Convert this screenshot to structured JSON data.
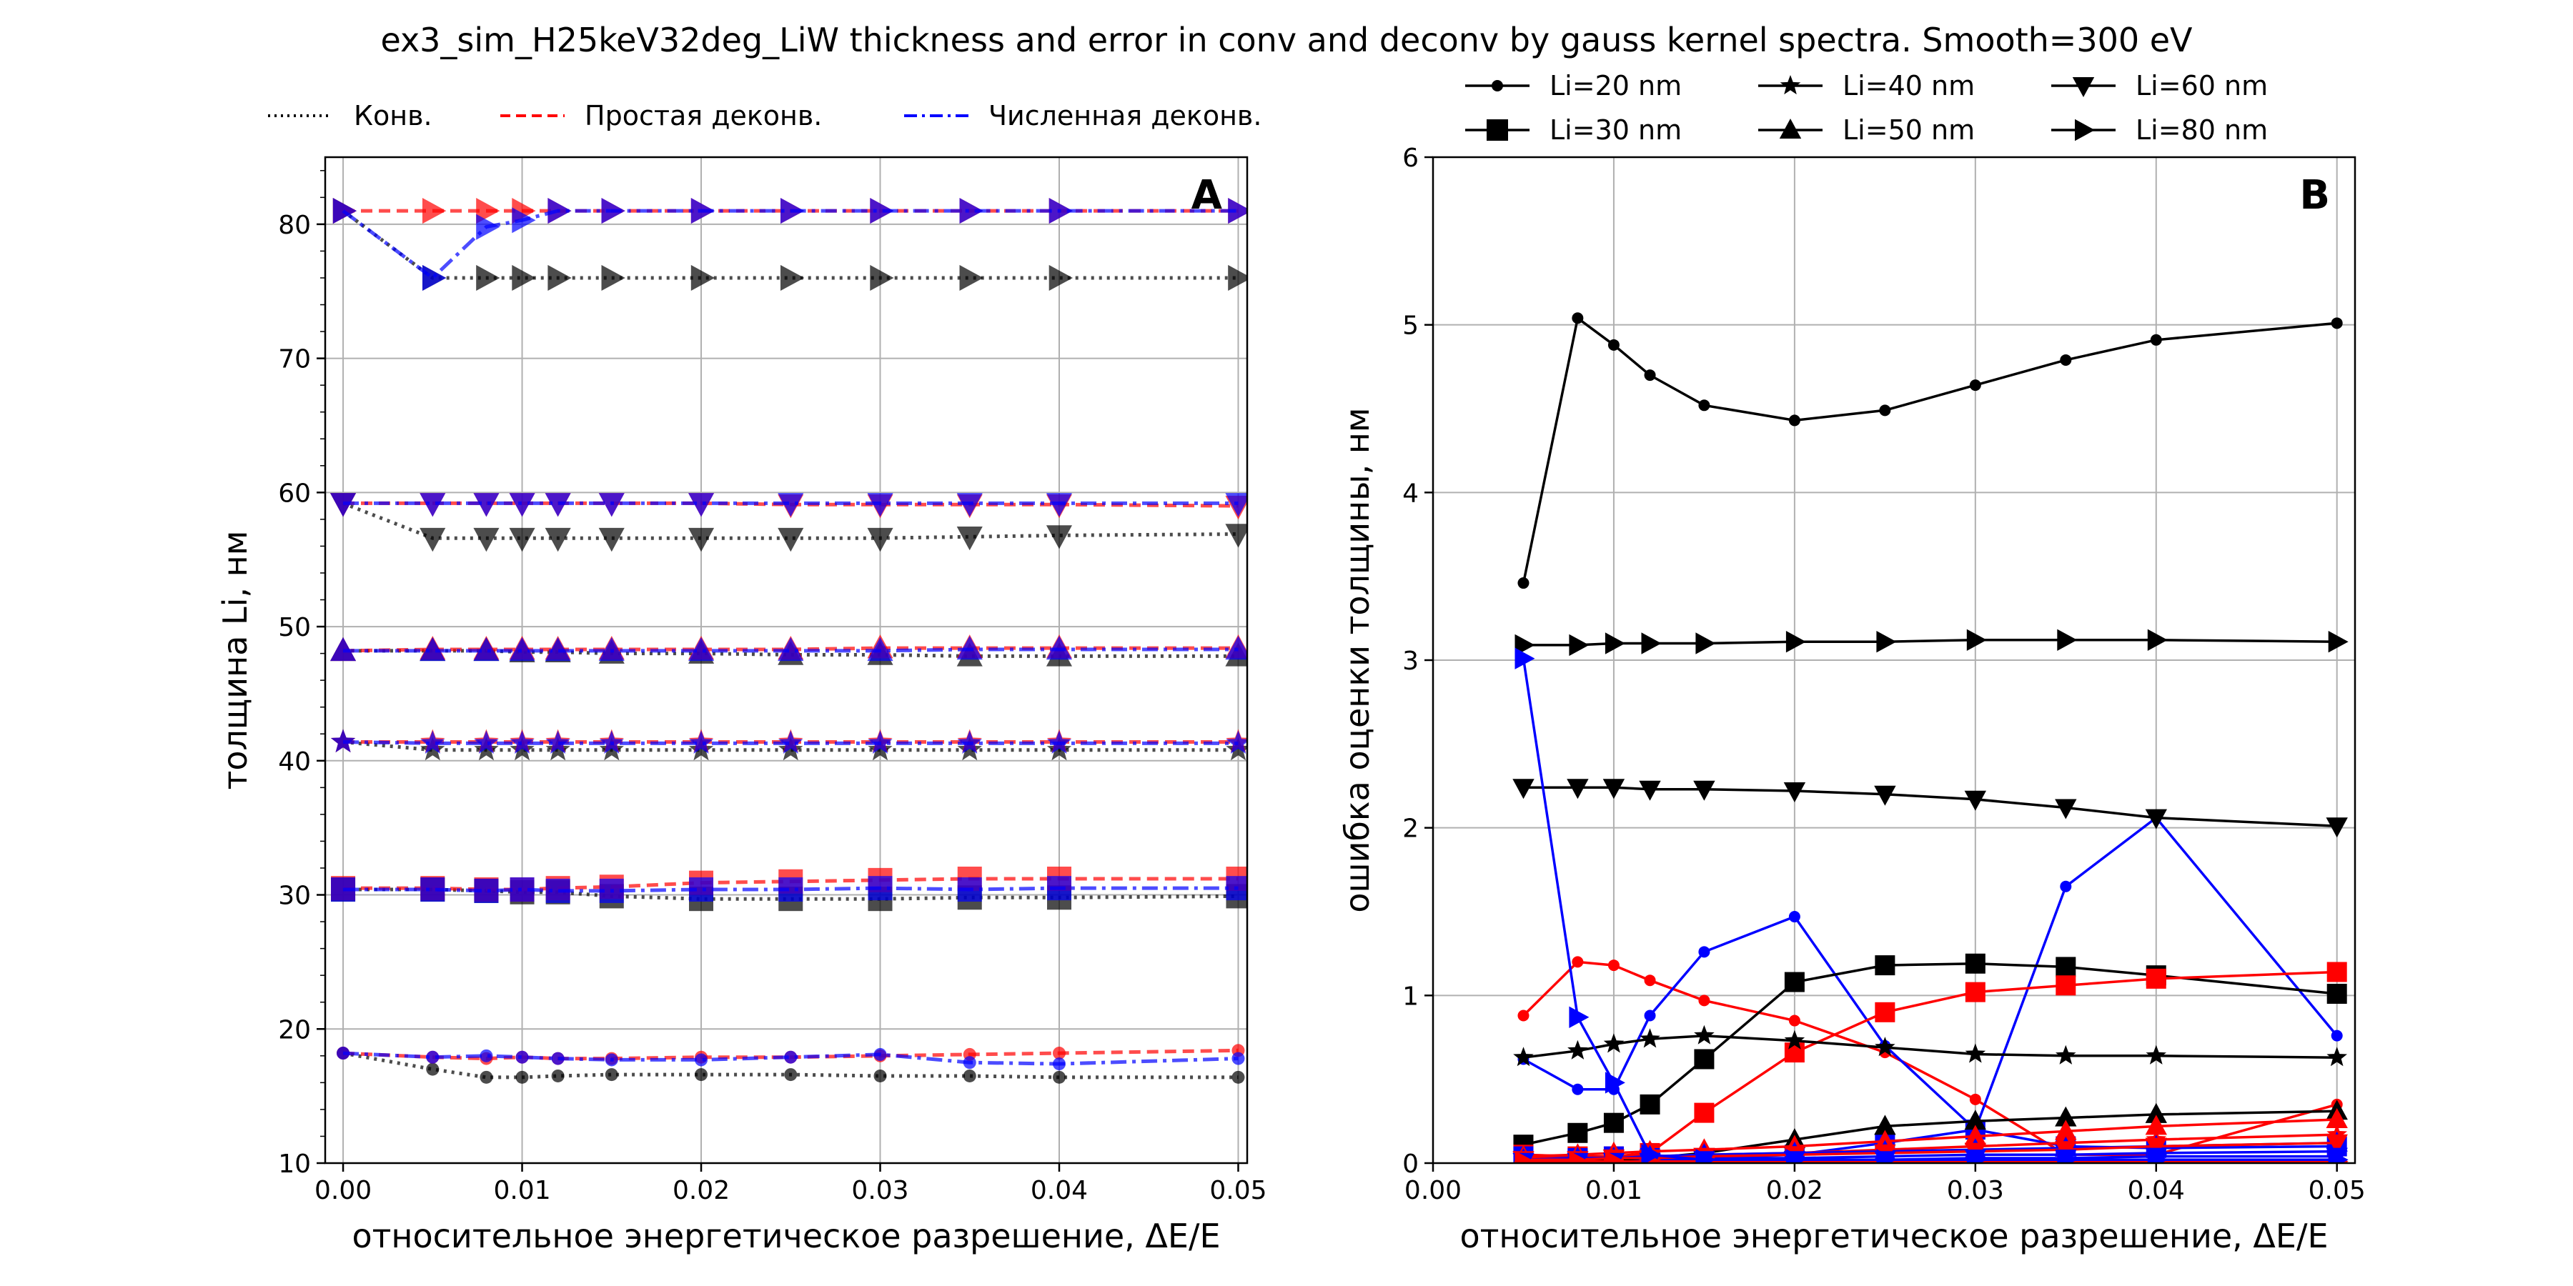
{
  "figure": {
    "suptitle": "ex3_sim_H25keV32deg_LiW thickness and error in conv and deconv by gauss kernel spectra. Smooth=300 eV"
  },
  "colors": {
    "conv": "#000000",
    "simple": "#ff0000",
    "numeric": "#0000ff",
    "grid": "#b0b0b0"
  },
  "chart_data": [
    {
      "type": "line",
      "panel": "A",
      "xlabel": "относительное энергетическое разрешение, ΔE/E",
      "ylabel": "толщина Li, нм",
      "xlim": [
        -0.001,
        0.0505
      ],
      "ylim": [
        10,
        85
      ],
      "xticks": [
        0.0,
        0.01,
        0.02,
        0.03,
        0.04,
        0.05
      ],
      "xtick_labels": [
        "0.00",
        "0.01",
        "0.02",
        "0.03",
        "0.04",
        "0.05"
      ],
      "yticks": [
        10,
        20,
        30,
        40,
        50,
        60,
        70,
        80
      ],
      "ytick_labels": [
        "10",
        "20",
        "30",
        "40",
        "50",
        "60",
        "70",
        "80"
      ],
      "grid": true,
      "legend_position": "above",
      "legend": [
        {
          "label": "Конв.",
          "style": "conv"
        },
        {
          "label": "Простая деконв.",
          "style": "simple"
        },
        {
          "label": "Численная деконв.",
          "style": "numeric"
        }
      ],
      "x": [
        0.0,
        0.005,
        0.008,
        0.01,
        0.012,
        0.015,
        0.02,
        0.025,
        0.03,
        0.035,
        0.04,
        0.05
      ],
      "groups": [
        {
          "li": "20",
          "marker": "circle",
          "conv": [
            18.2,
            17.0,
            16.4,
            16.4,
            16.5,
            16.6,
            16.6,
            16.6,
            16.5,
            16.5,
            16.4,
            16.4
          ],
          "simple": [
            18.2,
            17.9,
            17.8,
            17.9,
            17.8,
            17.8,
            17.9,
            17.9,
            18.0,
            18.1,
            18.2,
            18.4
          ],
          "numeric": [
            18.2,
            17.9,
            18.0,
            17.9,
            17.8,
            17.7,
            17.7,
            17.9,
            18.1,
            17.5,
            17.4,
            17.8
          ]
        },
        {
          "li": "30",
          "marker": "square",
          "conv": [
            30.4,
            30.4,
            30.3,
            30.2,
            30.2,
            29.9,
            29.7,
            29.7,
            29.7,
            29.8,
            29.8,
            29.9
          ],
          "simple": [
            30.5,
            30.5,
            30.4,
            30.4,
            30.5,
            30.6,
            30.9,
            31.0,
            31.1,
            31.2,
            31.2,
            31.2
          ],
          "numeric": [
            30.4,
            30.4,
            30.3,
            30.4,
            30.3,
            30.3,
            30.4,
            30.4,
            30.5,
            30.4,
            30.5,
            30.5
          ]
        },
        {
          "li": "40",
          "marker": "star",
          "conv": [
            41.4,
            40.8,
            40.8,
            40.8,
            40.8,
            40.8,
            40.8,
            40.8,
            40.8,
            40.8,
            40.8,
            40.8
          ],
          "simple": [
            41.4,
            41.4,
            41.4,
            41.4,
            41.4,
            41.4,
            41.4,
            41.4,
            41.4,
            41.4,
            41.4,
            41.4
          ],
          "numeric": [
            41.4,
            41.3,
            41.3,
            41.3,
            41.3,
            41.3,
            41.3,
            41.3,
            41.3,
            41.3,
            41.3,
            41.3
          ]
        },
        {
          "li": "50",
          "marker": "triangle-up",
          "conv": [
            48.2,
            48.2,
            48.2,
            48.1,
            48.1,
            48.0,
            48.0,
            47.9,
            47.9,
            47.8,
            47.8,
            47.8
          ],
          "simple": [
            48.2,
            48.3,
            48.3,
            48.3,
            48.3,
            48.3,
            48.3,
            48.3,
            48.4,
            48.4,
            48.4,
            48.4
          ],
          "numeric": [
            48.2,
            48.2,
            48.2,
            48.2,
            48.2,
            48.2,
            48.2,
            48.2,
            48.2,
            48.3,
            48.3,
            48.3
          ]
        },
        {
          "li": "60",
          "marker": "triangle-down",
          "conv": [
            59.2,
            56.6,
            56.6,
            56.6,
            56.6,
            56.6,
            56.6,
            56.6,
            56.6,
            56.7,
            56.8,
            56.9
          ],
          "simple": [
            59.2,
            59.2,
            59.2,
            59.2,
            59.2,
            59.2,
            59.2,
            59.1,
            59.1,
            59.1,
            59.1,
            59.0
          ],
          "numeric": [
            59.2,
            59.2,
            59.2,
            59.2,
            59.2,
            59.2,
            59.2,
            59.2,
            59.2,
            59.2,
            59.2,
            59.2
          ]
        },
        {
          "li": "80",
          "marker": "triangle-right",
          "conv": [
            81.0,
            76.0,
            76.0,
            76.0,
            76.0,
            76.0,
            76.0,
            76.0,
            76.0,
            76.0,
            76.0,
            76.0
          ],
          "simple": [
            81.0,
            81.0,
            81.0,
            81.0,
            81.0,
            81.0,
            81.0,
            81.0,
            81.0,
            81.0,
            81.0,
            81.0
          ],
          "numeric": [
            81.0,
            76.0,
            79.8,
            80.3,
            81.0,
            81.0,
            81.0,
            81.0,
            81.0,
            81.0,
            81.0,
            81.0
          ]
        }
      ]
    },
    {
      "type": "line",
      "panel": "B",
      "xlabel": "относительное энергетическое разрешение, ΔE/E",
      "ylabel": "ошибка оценки толщины, нм",
      "xlim": [
        0.0,
        0.051
      ],
      "ylim": [
        0,
        6
      ],
      "xticks": [
        0.0,
        0.01,
        0.02,
        0.03,
        0.04,
        0.05
      ],
      "xtick_labels": [
        "0.00",
        "0.01",
        "0.02",
        "0.03",
        "0.04",
        "0.05"
      ],
      "yticks": [
        0,
        1,
        2,
        3,
        4,
        5,
        6
      ],
      "ytick_labels": [
        "0",
        "1",
        "2",
        "3",
        "4",
        "5",
        "6"
      ],
      "grid": true,
      "legend_position": "above",
      "legend": [
        {
          "label": "Li=20 nm",
          "marker": "circle"
        },
        {
          "label": "Li=30 nm",
          "marker": "square"
        },
        {
          "label": "Li=40 nm",
          "marker": "star"
        },
        {
          "label": "Li=50 nm",
          "marker": "triangle-up"
        },
        {
          "label": "Li=60 nm",
          "marker": "triangle-down"
        },
        {
          "label": "Li=80 nm",
          "marker": "triangle-right"
        }
      ],
      "x": [
        0.005,
        0.008,
        0.01,
        0.012,
        0.015,
        0.02,
        0.025,
        0.03,
        0.035,
        0.04,
        0.05
      ],
      "groups": [
        {
          "li": "20",
          "marker": "circle",
          "conv": [
            3.46,
            5.04,
            4.88,
            4.7,
            4.52,
            4.43,
            4.49,
            4.64,
            4.79,
            4.91,
            5.01
          ],
          "simple": [
            0.88,
            1.2,
            1.18,
            1.09,
            0.97,
            0.85,
            0.66,
            0.38,
            0.05,
            0.05,
            0.35
          ],
          "numeric": [
            0.62,
            0.44,
            0.44,
            0.88,
            1.26,
            1.47,
            0.7,
            0.2,
            1.65,
            2.06,
            0.76
          ]
        },
        {
          "li": "30",
          "marker": "square",
          "conv": [
            0.11,
            0.18,
            0.24,
            0.35,
            0.62,
            1.08,
            1.18,
            1.19,
            1.17,
            1.12,
            1.01
          ],
          "simple": [
            0.05,
            0.04,
            0.04,
            0.06,
            0.3,
            0.66,
            0.9,
            1.02,
            1.06,
            1.1,
            1.14
          ],
          "numeric": [
            0.04,
            0.03,
            0.04,
            0.03,
            0.03,
            0.05,
            0.12,
            0.2,
            0.1,
            0.09,
            0.1
          ]
        },
        {
          "li": "40",
          "marker": "star",
          "conv": [
            0.63,
            0.67,
            0.71,
            0.74,
            0.76,
            0.73,
            0.69,
            0.65,
            0.64,
            0.64,
            0.63
          ],
          "simple": [
            0.03,
            0.03,
            0.04,
            0.04,
            0.05,
            0.06,
            0.08,
            0.1,
            0.12,
            0.14,
            0.17
          ],
          "numeric": [
            0.02,
            0.02,
            0.02,
            0.02,
            0.03,
            0.03,
            0.04,
            0.05,
            0.05,
            0.06,
            0.07
          ]
        },
        {
          "li": "50",
          "marker": "triangle-up",
          "conv": [
            0.01,
            0.01,
            0.02,
            0.03,
            0.06,
            0.14,
            0.22,
            0.25,
            0.27,
            0.29,
            0.31
          ],
          "simple": [
            0.04,
            0.05,
            0.06,
            0.07,
            0.08,
            0.1,
            0.13,
            0.16,
            0.19,
            0.22,
            0.26
          ],
          "numeric": [
            0.02,
            0.03,
            0.03,
            0.04,
            0.05,
            0.06,
            0.07,
            0.08,
            0.09,
            0.1,
            0.12
          ]
        },
        {
          "li": "60",
          "marker": "triangle-down",
          "conv": [
            2.24,
            2.24,
            2.24,
            2.23,
            2.23,
            2.22,
            2.2,
            2.17,
            2.12,
            2.06,
            2.01
          ],
          "simple": [
            0.02,
            0.02,
            0.03,
            0.03,
            0.04,
            0.05,
            0.06,
            0.07,
            0.08,
            0.1,
            0.12
          ],
          "numeric": [
            0.01,
            0.01,
            0.01,
            0.01,
            0.02,
            0.02,
            0.02,
            0.03,
            0.03,
            0.04,
            0.04
          ]
        },
        {
          "li": "80",
          "marker": "triangle-right",
          "conv": [
            3.09,
            3.09,
            3.1,
            3.1,
            3.1,
            3.11,
            3.11,
            3.12,
            3.12,
            3.12,
            3.11
          ],
          "simple": [
            0.01,
            0.01,
            0.01,
            0.01,
            0.01,
            0.01,
            0.01,
            0.01,
            0.01,
            0.01,
            0.01
          ],
          "numeric": [
            3.01,
            0.87,
            0.48,
            0.05,
            0.02,
            0.02,
            0.02,
            0.02,
            0.02,
            0.02,
            0.02
          ]
        }
      ]
    }
  ]
}
